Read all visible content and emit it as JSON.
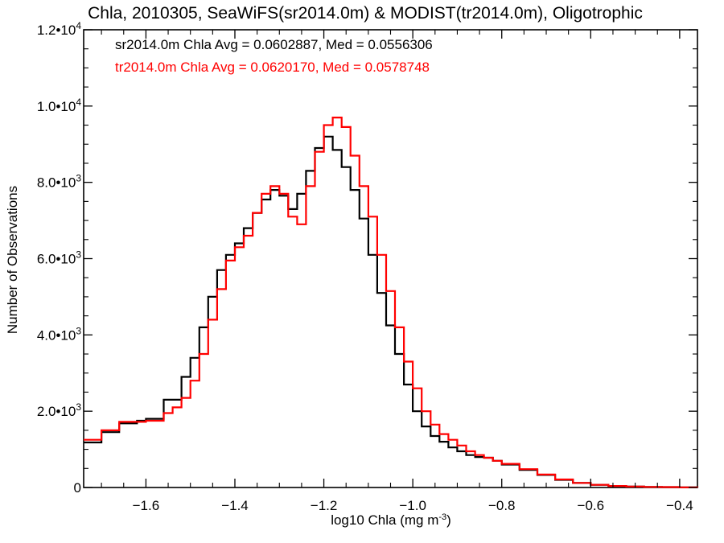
{
  "chart_data": {
    "type": "line",
    "title": "Chla, 2010305, SeaWiFS(sr2014.0m) & MODIST(tr2014.0m), Oligotrophic",
    "xlabel": "log10 Chla (mg m",
    "xlabel_sup": "-3",
    "xlabel_end": ")",
    "ylabel": "Number of Observations",
    "xlim": [
      -1.74,
      -0.36
    ],
    "ylim": [
      0,
      12000
    ],
    "x_ticks": [
      -1.6,
      -1.4,
      -1.2,
      -1.0,
      -0.8,
      -0.6,
      -0.4
    ],
    "x_tick_labels": [
      "−1.6",
      "−1.4",
      "−1.2",
      "−1.0",
      "−0.8",
      "−0.6",
      "−0.4"
    ],
    "y_ticks": [
      {
        "value": 0,
        "mant": "0",
        "exp": ""
      },
      {
        "value": 2000,
        "mant": "2.0•10",
        "exp": "3"
      },
      {
        "value": 4000,
        "mant": "4.0•10",
        "exp": "3"
      },
      {
        "value": 6000,
        "mant": "6.0•10",
        "exp": "3"
      },
      {
        "value": 8000,
        "mant": "8.0•10",
        "exp": "3"
      },
      {
        "value": 10000,
        "mant": "1.0•10",
        "exp": "4"
      },
      {
        "value": 12000,
        "mant": "1.2•10",
        "exp": "4"
      }
    ],
    "grid": false,
    "annotations": [
      {
        "text": "sr2014.0m Chla Avg = 0.0602887, Med = 0.0556306",
        "color": "#000000"
      },
      {
        "text": "tr2014.0m Chla Avg = 0.0620170, Med = 0.0578748",
        "color": "#ff0000"
      }
    ],
    "series": [
      {
        "color": "#000000",
        "x": [
          -1.74,
          -1.7,
          -1.66,
          -1.62,
          -1.6,
          -1.56,
          -1.52,
          -1.5,
          -1.48,
          -1.46,
          -1.44,
          -1.42,
          -1.4,
          -1.38,
          -1.36,
          -1.34,
          -1.32,
          -1.3,
          -1.28,
          -1.26,
          -1.24,
          -1.22,
          -1.2,
          -1.18,
          -1.16,
          -1.14,
          -1.12,
          -1.1,
          -1.08,
          -1.06,
          -1.04,
          -1.02,
          -1.0,
          -0.98,
          -0.96,
          -0.94,
          -0.92,
          -0.9,
          -0.88,
          -0.86,
          -0.84,
          -0.82,
          -0.8,
          -0.76,
          -0.72,
          -0.68,
          -0.64,
          -0.6,
          -0.56,
          -0.52,
          -0.48,
          -0.44,
          -0.4,
          -0.36
        ],
        "y": [
          1180,
          1450,
          1680,
          1750,
          1800,
          2300,
          2900,
          3400,
          4200,
          5000,
          5700,
          6100,
          6400,
          6800,
          7200,
          7550,
          7800,
          7650,
          7300,
          7700,
          8300,
          8900,
          9200,
          8850,
          8400,
          7800,
          7050,
          6100,
          5100,
          4250,
          3500,
          2700,
          2000,
          1600,
          1350,
          1200,
          1050,
          950,
          850,
          800,
          780,
          700,
          600,
          460,
          330,
          200,
          120,
          70,
          40,
          25,
          15,
          10,
          5,
          3
        ]
      },
      {
        "color": "#ff0000",
        "x": [
          -1.74,
          -1.7,
          -1.66,
          -1.62,
          -1.6,
          -1.56,
          -1.54,
          -1.52,
          -1.5,
          -1.48,
          -1.46,
          -1.44,
          -1.42,
          -1.4,
          -1.38,
          -1.36,
          -1.34,
          -1.32,
          -1.3,
          -1.28,
          -1.26,
          -1.24,
          -1.22,
          -1.2,
          -1.18,
          -1.16,
          -1.14,
          -1.12,
          -1.1,
          -1.08,
          -1.06,
          -1.04,
          -1.02,
          -1.0,
          -0.98,
          -0.96,
          -0.94,
          -0.92,
          -0.9,
          -0.88,
          -0.86,
          -0.84,
          -0.82,
          -0.8,
          -0.76,
          -0.72,
          -0.68,
          -0.64,
          -0.6,
          -0.56,
          -0.52,
          -0.48,
          -0.44,
          -0.4,
          -0.36
        ],
        "y": [
          1250,
          1500,
          1720,
          1720,
          1750,
          1950,
          2100,
          2350,
          2800,
          3500,
          4400,
          5200,
          5950,
          6300,
          6600,
          7200,
          7700,
          7900,
          7700,
          7100,
          6900,
          7900,
          8800,
          9500,
          9700,
          9450,
          8700,
          7900,
          7100,
          6100,
          5150,
          4200,
          3300,
          2600,
          2000,
          1650,
          1400,
          1250,
          1100,
          950,
          850,
          780,
          700,
          620,
          480,
          340,
          210,
          120,
          70,
          40,
          25,
          15,
          10,
          5,
          3
        ]
      }
    ]
  }
}
